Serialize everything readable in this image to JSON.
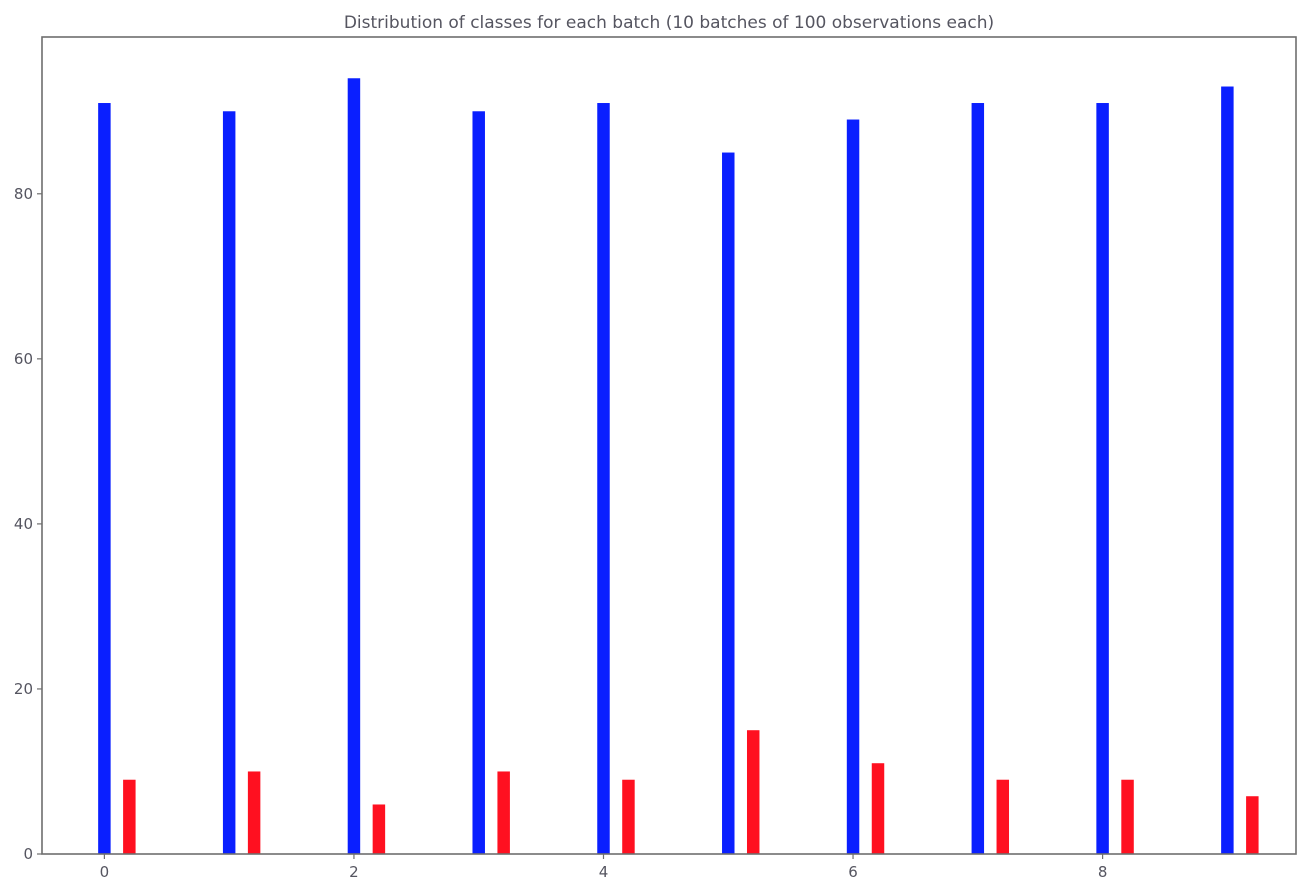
{
  "chart_data": {
    "type": "bar",
    "title": "Distribution of classes for each batch (10 batches of 100 observations each)",
    "xlabel": "",
    "ylabel": "",
    "categories": [
      0,
      1,
      2,
      3,
      4,
      5,
      6,
      7,
      8,
      9
    ],
    "series": [
      {
        "color": "#0a1fff",
        "values": [
          91,
          90,
          94,
          90,
          91,
          85,
          89,
          91,
          91,
          93
        ]
      },
      {
        "color": "#ff1020",
        "values": [
          9,
          10,
          6,
          10,
          9,
          15,
          11,
          9,
          9,
          7
        ]
      }
    ],
    "xlim": [
      -0.5,
      9.55
    ],
    "ylim": [
      0,
      99
    ],
    "xticks": [
      0,
      2,
      4,
      6,
      8
    ],
    "yticks": [
      0,
      20,
      40,
      60,
      80
    ],
    "grid": false,
    "legend": false
  }
}
